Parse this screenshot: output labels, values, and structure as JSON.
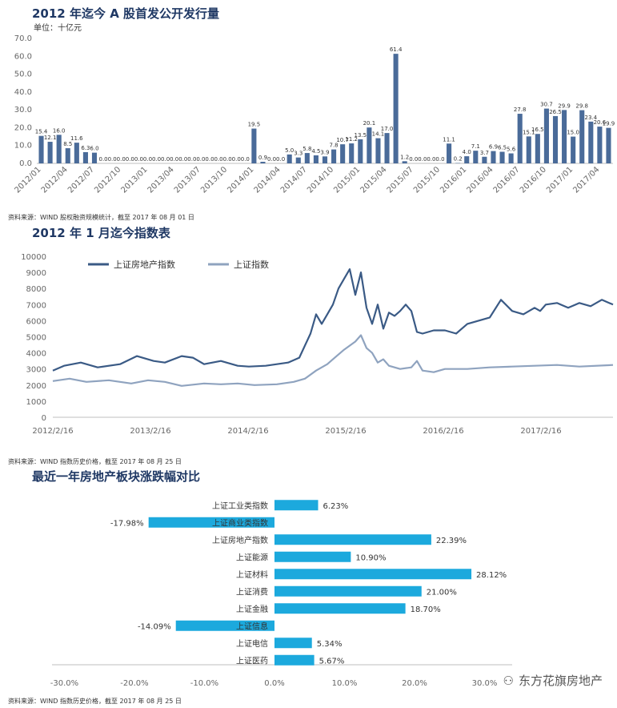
{
  "chart_data": [
    {
      "type": "bar",
      "title": "2012 年迄今 A 股首发公开发行量",
      "unit": "单位：十亿元",
      "ylim": [
        0,
        70
      ],
      "yticks": [
        "0.0",
        "10.0",
        "20.0",
        "30.0",
        "40.0",
        "50.0",
        "60.0",
        "70.0"
      ],
      "tick_labels": [
        "2012/01",
        "2012/04",
        "2012/07",
        "2012/10",
        "2013/01",
        "2013/04",
        "2013/07",
        "2013/10",
        "2014/01",
        "2014/04",
        "2014/07",
        "2014/10",
        "2015/01",
        "2015/04",
        "2015/07",
        "2015/10",
        "2016/01",
        "2016/04",
        "2016/07",
        "2016/10",
        "2017/01",
        "2017/04"
      ],
      "values": [
        15.4,
        12.1,
        16.0,
        8.5,
        11.6,
        6.3,
        6.0,
        0,
        0,
        0,
        0,
        0,
        0,
        0,
        0,
        0,
        0,
        0,
        0,
        0,
        0,
        0,
        0,
        0,
        19.5,
        0.9,
        0,
        0,
        5.0,
        3.3,
        5.8,
        4.5,
        3.9,
        7.8,
        10.7,
        11.2,
        13.5,
        20.1,
        14.1,
        17.0,
        61.4,
        1.2,
        0,
        0,
        0,
        0,
        11.1,
        0.2,
        4.0,
        7.1,
        3.7,
        6.9,
        6.5,
        5.6,
        27.8,
        15.1,
        16.5,
        30.7,
        26.5,
        29.9,
        15.0,
        29.8,
        23.4,
        20.6,
        19.9
      ],
      "labels": [
        "15.4",
        "12.1",
        "16.0",
        "8.5",
        "11.6",
        "6.3",
        "6.0",
        "0.0",
        "0.0",
        "0.0",
        "0.0",
        "0.0",
        "0.0",
        "0.0",
        "0.0",
        "0.0",
        "0.0",
        "0.0",
        "0.0",
        "0.0",
        "0.0",
        "0.0",
        "0.0",
        "0.0",
        "19.5",
        "0.9",
        "0.0",
        "0.0",
        "5.0",
        "3.3",
        "5.8",
        "4.5",
        "3.9",
        "7.8",
        "10.7",
        "11.2",
        "13.5",
        "20.1",
        "14.1",
        "17.0",
        "61.4",
        "1.2",
        "0.0",
        "0.0",
        "0.0",
        "0.0",
        "11.1",
        "0.2",
        "4.0",
        "7.1",
        "3.7",
        "6.9",
        "6.5",
        "5.6",
        "27.8",
        "15.1",
        "16.5",
        "30.7",
        "26.5",
        "29.9",
        "15.0",
        "29.8",
        "23.4",
        "20.6",
        "19.9"
      ],
      "color": "#4a6b99",
      "source": "资料来源：WIND 股权融资规模统计，截至 2017 年 08 月 01 日"
    },
    {
      "type": "line",
      "title": "2012 年 1 月迄今指数表",
      "ylim": [
        0,
        10000
      ],
      "yticks": [
        "0",
        "1000",
        "2000",
        "3000",
        "4000",
        "5000",
        "6000",
        "7000",
        "8000",
        "9000",
        "10000"
      ],
      "x_ticks": [
        "2012/2/16",
        "2013/2/16",
        "2014/2/16",
        "2015/2/16",
        "2016/2/16",
        "2017/2/16"
      ],
      "series": [
        {
          "name": "上证房地产指数",
          "color": "#3a5a85",
          "x": [
            0,
            0.02,
            0.05,
            0.08,
            0.12,
            0.15,
            0.18,
            0.2,
            0.23,
            0.25,
            0.27,
            0.3,
            0.33,
            0.35,
            0.38,
            0.4,
            0.42,
            0.44,
            0.46,
            0.47,
            0.48,
            0.49,
            0.5,
            0.51,
            0.52,
            0.53,
            0.54,
            0.55,
            0.56,
            0.57,
            0.58,
            0.59,
            0.6,
            0.61,
            0.62,
            0.63,
            0.64,
            0.65,
            0.66,
            0.68,
            0.7,
            0.71,
            0.72,
            0.73,
            0.74,
            0.76,
            0.78,
            0.8,
            0.82,
            0.84,
            0.86,
            0.87,
            0.88,
            0.9,
            0.92,
            0.94,
            0.96,
            0.98,
            1.0
          ],
          "y": [
            2900,
            3200,
            3400,
            3100,
            3300,
            3800,
            3500,
            3400,
            3800,
            3700,
            3300,
            3500,
            3200,
            3150,
            3200,
            3300,
            3400,
            3700,
            5200,
            6400,
            5800,
            6400,
            7000,
            8000,
            8600,
            9200,
            7600,
            9000,
            6800,
            5800,
            7000,
            5500,
            6500,
            6300,
            6600,
            7000,
            6600,
            5300,
            5200,
            5400,
            5400,
            5300,
            5200,
            5500,
            5800,
            6000,
            6200,
            7300,
            6600,
            6400,
            6800,
            6600,
            7000,
            7100,
            6800,
            7100,
            6900,
            7300,
            7000
          ]
        },
        {
          "name": "上证指数",
          "color": "#8fa3bf",
          "x": [
            0,
            0.03,
            0.06,
            0.1,
            0.14,
            0.17,
            0.2,
            0.23,
            0.27,
            0.3,
            0.33,
            0.36,
            0.4,
            0.43,
            0.45,
            0.47,
            0.49,
            0.5,
            0.52,
            0.54,
            0.55,
            0.56,
            0.57,
            0.58,
            0.59,
            0.6,
            0.62,
            0.64,
            0.65,
            0.66,
            0.68,
            0.7,
            0.74,
            0.78,
            0.82,
            0.86,
            0.9,
            0.94,
            1.0
          ],
          "y": [
            2250,
            2400,
            2200,
            2300,
            2100,
            2300,
            2200,
            1950,
            2100,
            2050,
            2100,
            2000,
            2050,
            2200,
            2400,
            2900,
            3300,
            3600,
            4200,
            4700,
            5100,
            4300,
            4000,
            3400,
            3600,
            3200,
            3000,
            3100,
            3500,
            2900,
            2800,
            3000,
            3000,
            3100,
            3150,
            3200,
            3250,
            3150,
            3250
          ]
        }
      ],
      "source": "资料来源：WIND 指数历史价格，截至 2017 年 08 月 25 日"
    },
    {
      "type": "bar",
      "orientation": "horizontal",
      "title": "最近一年房地产板块涨跌幅对比",
      "categories": [
        "上证工业类指数",
        "上证商业类指数",
        "上证房地产指数",
        "上证能源",
        "上证材料",
        "上证消费",
        "上证金融",
        "上证信息",
        "上证电信",
        "上证医药"
      ],
      "values": [
        6.23,
        -17.98,
        22.39,
        10.9,
        28.12,
        21.0,
        18.7,
        -14.09,
        5.34,
        5.67
      ],
      "labels": [
        "6.23%",
        "-17.98%",
        "22.39%",
        "10.90%",
        "28.12%",
        "21.00%",
        "18.70%",
        "-14.09%",
        "5.34%",
        "5.67%"
      ],
      "xlim": [
        -30,
        30
      ],
      "xticks": [
        "-30.0%",
        "-20.0%",
        "-10.0%",
        "0.0%",
        "10.0%",
        "20.0%",
        "30.0%"
      ],
      "color": "#1ca9dd",
      "source": "资料来源：WIND 指数历史价格，截至 2017 年 08 月 25 日"
    }
  ],
  "watermark": "东方花旗房地产"
}
